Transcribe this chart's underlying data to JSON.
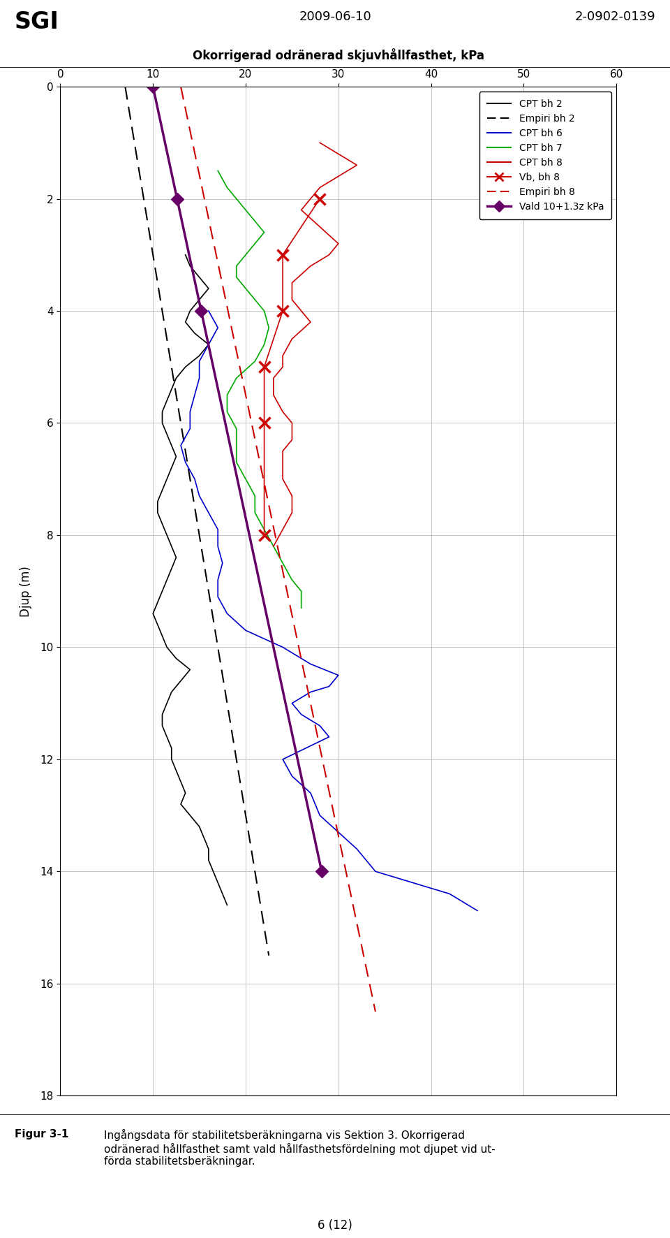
{
  "title": "Okorrigerad odränerad skjuvhållfasthet, kPa",
  "ylabel": "Djup (m)",
  "header_left": "SGI",
  "header_center": "2009-06-10",
  "header_right": "2-0902-0139",
  "footer_fignum": "Figur 3-1",
  "footer_line1": "Ingångsdata för stabilitetsberäkningarna vis Sektion 3. Okorrigerad",
  "footer_line2": "odränerad hållfasthet samt vald hållfasthetsfördelning mot djupet vid ut-",
  "footer_line3": "förda stabilitetsberäkningar.",
  "page_number": "6 (12)",
  "xlim": [
    0,
    60
  ],
  "ylim": [
    0,
    18
  ],
  "xticks": [
    0,
    10,
    20,
    30,
    40,
    50,
    60
  ],
  "yticks": [
    0,
    2,
    4,
    6,
    8,
    10,
    12,
    14,
    16,
    18
  ],
  "cpt_bh2_depth": [
    3.0,
    3.2,
    3.4,
    3.6,
    3.8,
    4.0,
    4.2,
    4.4,
    4.6,
    4.8,
    5.0,
    5.2,
    5.4,
    5.6,
    5.8,
    6.0,
    6.2,
    6.4,
    6.6,
    6.8,
    7.0,
    7.2,
    7.4,
    7.6,
    7.8,
    8.0,
    8.2,
    8.4,
    8.6,
    8.8,
    9.0,
    9.2,
    9.4,
    9.6,
    9.8,
    10.0,
    10.2,
    10.4,
    10.6,
    10.8,
    11.0,
    11.2,
    11.4,
    11.6,
    11.8,
    12.0,
    12.2,
    12.4,
    12.6,
    12.8,
    13.0,
    13.2,
    13.4,
    13.6,
    13.8,
    14.0,
    14.2,
    14.4,
    14.6
  ],
  "cpt_bh2_kpa": [
    13.5,
    14,
    15,
    16,
    15,
    14,
    13.5,
    14.5,
    16,
    15,
    13.5,
    12.5,
    12,
    11.5,
    11,
    11,
    11.5,
    12,
    12.5,
    12,
    11.5,
    11,
    10.5,
    10.5,
    11,
    11.5,
    12,
    12.5,
    12,
    11.5,
    11,
    10.5,
    10,
    10.5,
    11,
    11.5,
    12.5,
    14,
    13,
    12,
    11.5,
    11,
    11,
    11.5,
    12,
    12,
    12.5,
    13,
    13.5,
    13,
    14,
    15,
    15.5,
    16,
    16,
    16.5,
    17,
    17.5,
    18
  ],
  "empiri_bh2_depth": [
    0,
    15.5
  ],
  "empiri_bh2_kpa": [
    7,
    22.5
  ],
  "cpt_bh6_depth": [
    4.0,
    4.3,
    4.6,
    4.9,
    5.2,
    5.5,
    5.8,
    6.1,
    6.4,
    6.7,
    7.0,
    7.3,
    7.6,
    7.9,
    8.2,
    8.5,
    8.8,
    9.1,
    9.4,
    9.7,
    10.0,
    10.3,
    10.5,
    10.7,
    10.8,
    11.0,
    11.2,
    11.4,
    11.6,
    12.0,
    12.3,
    12.6,
    13.0,
    13.3,
    13.6,
    14.0,
    14.4,
    14.7
  ],
  "cpt_bh6_kpa": [
    16,
    17,
    16,
    15,
    15,
    14.5,
    14,
    14,
    13,
    13.5,
    14.5,
    15,
    16,
    17,
    17,
    17.5,
    17,
    17,
    18,
    20,
    24,
    27,
    30,
    29,
    27,
    25,
    26,
    28,
    29,
    24,
    25,
    27,
    28,
    30,
    32,
    34,
    42,
    45
  ],
  "cpt_bh7_depth": [
    1.5,
    1.8,
    2.0,
    2.2,
    2.4,
    2.6,
    2.8,
    3.0,
    3.2,
    3.4,
    3.6,
    3.8,
    4.0,
    4.3,
    4.6,
    4.9,
    5.2,
    5.5,
    5.8,
    6.1,
    6.4,
    6.7,
    7.0,
    7.3,
    7.6,
    7.9,
    8.2,
    8.5,
    8.8,
    9.0,
    9.3
  ],
  "cpt_bh7_kpa": [
    17,
    18,
    19,
    20,
    21,
    22,
    21,
    20,
    19,
    19,
    20,
    21,
    22,
    22.5,
    22,
    21,
    19,
    18,
    18,
    19,
    19,
    19,
    20,
    21,
    21,
    22,
    23,
    24,
    25,
    26,
    26
  ],
  "cpt_bh8_depth": [
    1.0,
    1.2,
    1.4,
    1.6,
    1.8,
    2.0,
    2.2,
    2.5,
    2.8,
    3.0,
    3.2,
    3.5,
    3.8,
    4.0,
    4.2,
    4.5,
    4.8,
    5.0,
    5.2,
    5.5,
    5.8,
    6.0,
    6.3,
    6.5,
    6.8,
    7.0,
    7.3,
    7.6,
    7.9,
    8.2
  ],
  "cpt_bh8_kpa": [
    28,
    30,
    32,
    30,
    28,
    27,
    26,
    28,
    30,
    29,
    27,
    25,
    25,
    26,
    27,
    25,
    24,
    24,
    23,
    23,
    24,
    25,
    25,
    24,
    24,
    24,
    25,
    25,
    24,
    23
  ],
  "vb_bh8_depth": [
    2.0,
    3.0,
    4.0,
    5.0,
    6.0,
    8.0
  ],
  "vb_bh8_kpa": [
    28,
    24,
    24,
    22,
    22,
    22
  ],
  "empiri_bh8_depth": [
    0,
    16.5
  ],
  "empiri_bh8_kpa": [
    13,
    34
  ],
  "vald_depth": [
    0,
    2,
    4,
    14
  ],
  "vald_kpa": [
    10,
    12.6,
    15.2,
    28.2
  ],
  "colors": {
    "cpt_bh2": "#000000",
    "empiri_bh2": "#000000",
    "cpt_bh6": "#0000cc",
    "cpt_bh7": "#00aa00",
    "cpt_bh8": "#cc0000",
    "vb_bh8": "#cc0000",
    "empiri_bh8": "#cc0000",
    "vald": "#660066"
  },
  "background_color": "#ffffff"
}
